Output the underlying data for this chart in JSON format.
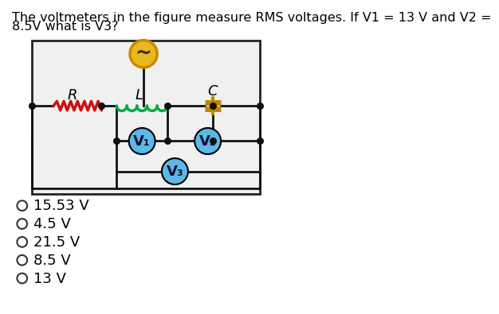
{
  "title_line1": "The voltmeters in the figure measure RMS voltages. If V1 = 13 V and V2 =",
  "title_line2": "8.5V what is V3?",
  "choices": [
    "15.53 V",
    "4.5 V",
    "21.5 V",
    "8.5 V",
    "13 V"
  ],
  "bg_color": "#ffffff",
  "box_facecolor": "#f0f0f0",
  "circuit_box_color": "#222222",
  "resistor_color": "#cc1111",
  "inductor_color": "#00aa44",
  "capacitor_color": "#bb8800",
  "voltmeter_fill": "#5bb8e8",
  "voltmeter_border": "#000000",
  "source_fill": "#e8b820",
  "source_border": "#cc8800",
  "wire_color": "#111111",
  "node_color": "#111111",
  "label_color": "#000000",
  "label_R": "R",
  "label_L": "L",
  "label_C": "C",
  "label_V1": "V₁",
  "label_V2": "V₂",
  "label_V3": "V₃",
  "title_fontsize": 11.5,
  "label_fontsize": 13,
  "voltmeter_fontsize": 13,
  "choice_fontsize": 13
}
